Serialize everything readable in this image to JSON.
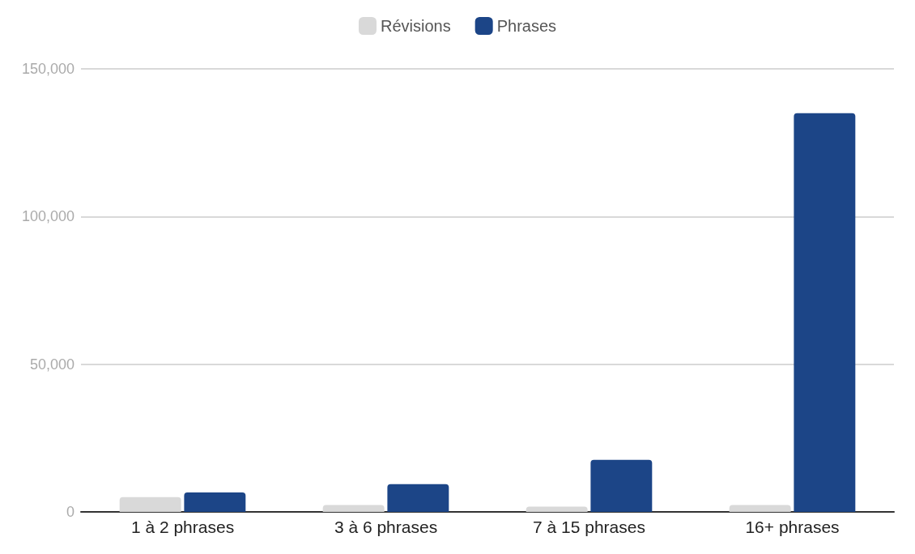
{
  "chart_data": {
    "type": "bar",
    "categories": [
      "1 à 2 phrases",
      "3 à 6 phrases",
      "7 à 15 phrases",
      "16+ phrases"
    ],
    "series": [
      {
        "name": "Révisions",
        "color": "#d9d9d9",
        "values": [
          5000,
          2300,
          1800,
          2300
        ]
      },
      {
        "name": "Phrases",
        "color": "#1c4587",
        "values": [
          6600,
          9400,
          17600,
          135000
        ]
      }
    ],
    "ylim": [
      0,
      150000
    ],
    "yticks": [
      {
        "value": 0,
        "label": "0"
      },
      {
        "value": 50000,
        "label": "50,000"
      },
      {
        "value": 100000,
        "label": "100,000"
      },
      {
        "value": 150000,
        "label": "150,000"
      }
    ],
    "grid": "y",
    "legend": "top"
  }
}
